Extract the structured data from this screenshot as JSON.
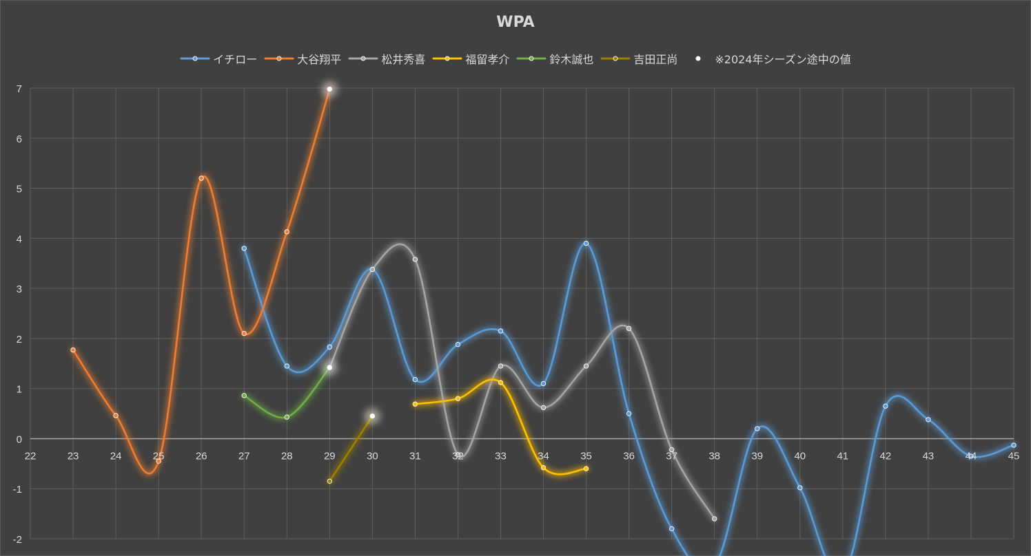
{
  "chart_data": {
    "type": "line",
    "title": "WPA",
    "xlabel": "",
    "ylabel": "",
    "xlim": [
      22,
      45
    ],
    "ylim": [
      -2,
      7
    ],
    "xticks": [
      22,
      23,
      24,
      25,
      26,
      27,
      28,
      29,
      30,
      31,
      32,
      33,
      34,
      35,
      36,
      37,
      38,
      39,
      40,
      41,
      42,
      43,
      44,
      45
    ],
    "yticks": [
      -2,
      -1,
      0,
      1,
      2,
      3,
      4,
      5,
      6,
      7
    ],
    "grid": true,
    "smooth": true,
    "legend_position": "top",
    "series": [
      {
        "name": "イチロー",
        "color": "#5b9bd5",
        "points": [
          [
            27,
            3.8
          ],
          [
            28,
            1.45
          ],
          [
            29,
            1.83
          ],
          [
            30,
            3.38
          ],
          [
            31,
            1.18
          ],
          [
            32,
            1.88
          ],
          [
            33,
            2.15
          ],
          [
            34,
            1.1
          ],
          [
            35,
            3.9
          ],
          [
            36,
            0.5
          ],
          [
            37,
            -1.8
          ],
          [
            38,
            -2.55
          ],
          [
            39,
            0.2
          ],
          [
            40,
            -0.98
          ],
          [
            41,
            -2.75
          ],
          [
            42,
            0.65
          ],
          [
            43,
            0.38
          ],
          [
            44,
            -0.35
          ],
          [
            45,
            -0.13
          ]
        ]
      },
      {
        "name": "大谷翔平",
        "color": "#ed7d31",
        "points": [
          [
            23,
            1.77
          ],
          [
            24,
            0.46
          ],
          [
            25,
            -0.45
          ],
          [
            26,
            5.2
          ],
          [
            27,
            2.1
          ],
          [
            28,
            4.13
          ],
          [
            29,
            6.98
          ]
        ]
      },
      {
        "name": "松井秀喜",
        "color": "#a5a5a5",
        "points": [
          [
            29,
            1.42
          ],
          [
            30,
            3.38
          ],
          [
            31,
            3.58
          ],
          [
            32,
            -0.32
          ],
          [
            33,
            1.45
          ],
          [
            34,
            0.62
          ],
          [
            35,
            1.45
          ],
          [
            36,
            2.2
          ],
          [
            37,
            -0.22
          ],
          [
            38,
            -1.6
          ]
        ]
      },
      {
        "name": "福留孝介",
        "color": "#ffc000",
        "points": [
          [
            31,
            0.69
          ],
          [
            32,
            0.8
          ],
          [
            33,
            1.12
          ],
          [
            34,
            -0.58
          ],
          [
            35,
            -0.6
          ]
        ]
      },
      {
        "name": "鈴木誠也",
        "color": "#70ad47",
        "points": [
          [
            27,
            0.86
          ],
          [
            28,
            0.43
          ],
          [
            29,
            1.42
          ]
        ]
      },
      {
        "name": "吉田正尚",
        "color": "#9e7e00",
        "points": [
          [
            29,
            -0.85
          ],
          [
            30,
            0.45
          ]
        ]
      }
    ],
    "highlight_series": {
      "name": "※2024年シーズン途中の値",
      "color": "#ffffff",
      "points": [
        [
          29,
          6.98
        ],
        [
          29,
          1.42
        ],
        [
          30,
          0.45
        ]
      ]
    }
  }
}
